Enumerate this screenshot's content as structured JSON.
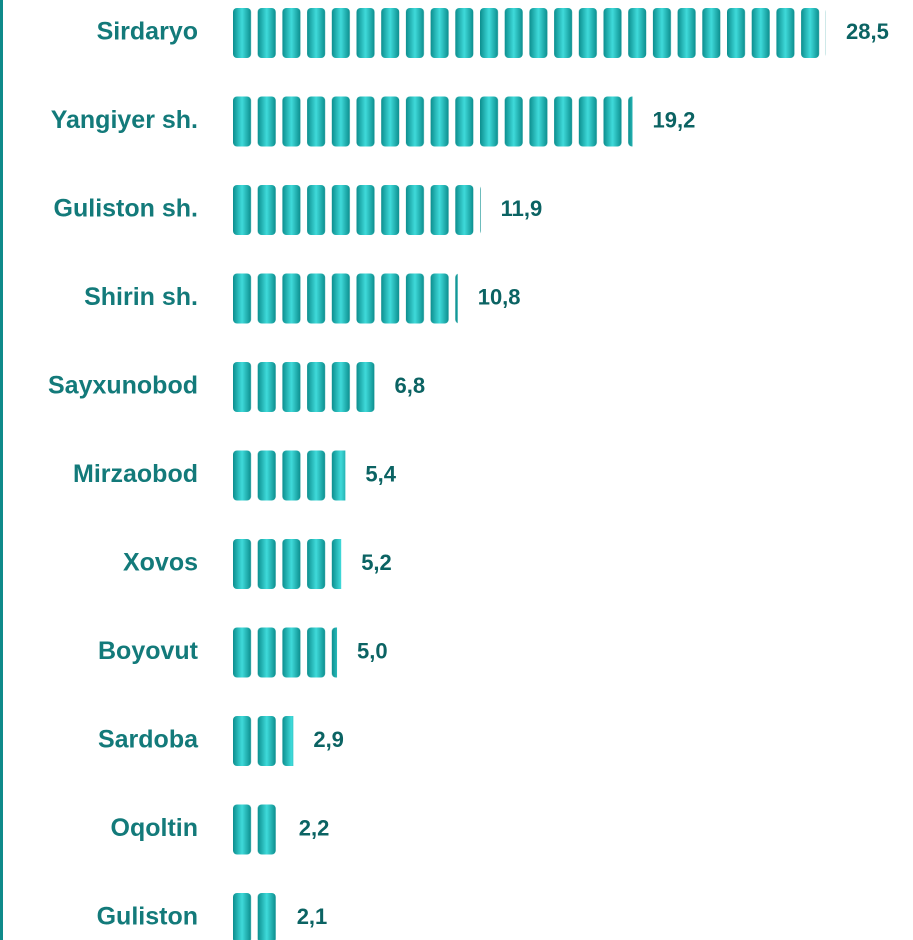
{
  "chart_data": {
    "type": "bar",
    "orientation": "horizontal",
    "categories": [
      "Sirdaryo",
      "Yangiyer sh.",
      "Guliston sh.",
      "Shirin sh.",
      "Sayxunobod",
      "Mirzaobod",
      "Xovos",
      "Boyovut",
      "Sardoba",
      "Oqoltin",
      "Guliston"
    ],
    "values": [
      28.5,
      19.2,
      11.9,
      10.8,
      6.8,
      5.4,
      5.2,
      5.0,
      2.9,
      2.2,
      2.1
    ],
    "value_labels": [
      "28,5",
      "19,2",
      "11,9",
      "10,8",
      "6,8",
      "5,4",
      "5,2",
      "5,0",
      "2,9",
      "2,2",
      "2,1"
    ],
    "color": "#1ab8b8"
  }
}
